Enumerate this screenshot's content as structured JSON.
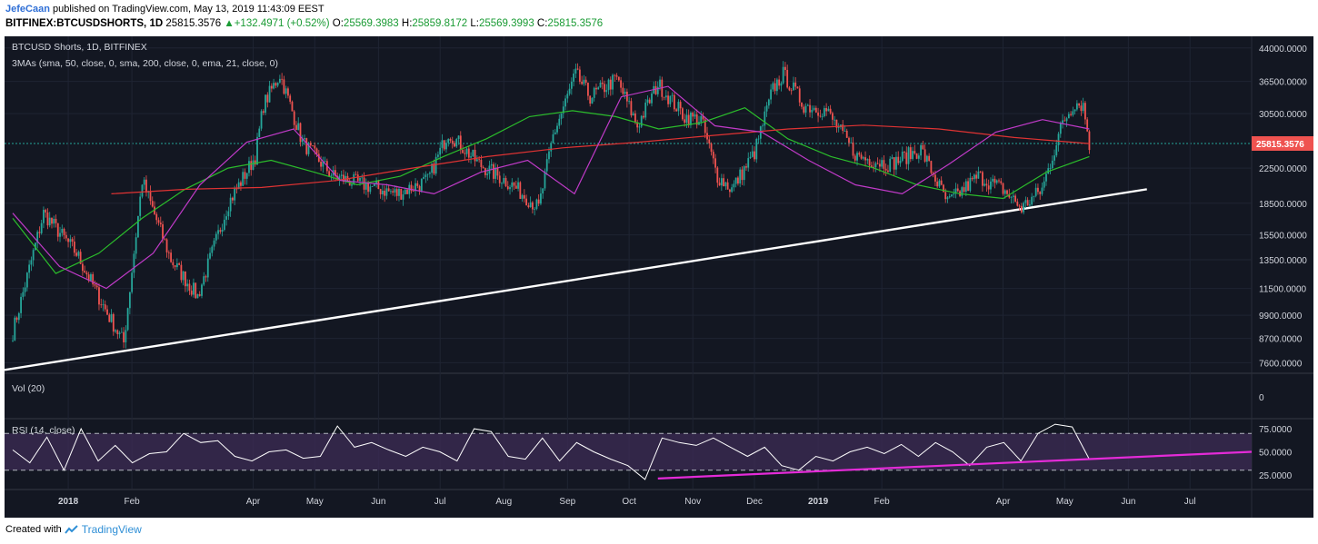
{
  "header": {
    "author": "JefeCaan",
    "published_text": " published on TradingView.com, May 13, 2019 11:43:09 EEST",
    "symbol": "BITFINEX:BTCUSDSHORTS, 1D",
    "last": "25815.3576",
    "change": "+132.4971 (+0.52%)",
    "o_label": "O:",
    "o_value": "25569.3983",
    "h_label": "H:",
    "h_value": "25859.8172",
    "l_label": "L:",
    "l_value": "25569.3993",
    "c_label": "C:",
    "c_value": "25815.3576",
    "up_arrow": "▲"
  },
  "panes": {
    "main_title": "BTCUSD Shorts, 1D, BITFINEX",
    "main_indicator": "3MAs (sma, 50, close, 0, sma, 200, close, 0, ema, 21, close, 0)",
    "vol_title": "Vol (20)",
    "vol_axis_label": "0",
    "rsi_title": "RSI (14, close)"
  },
  "footer": {
    "created_with": "Created with",
    "brand": "TradingView"
  },
  "colors": {
    "background": "#131722",
    "up": "#26a69a",
    "down": "#ef5350",
    "sma50": "#2bbd2b",
    "sma200": "#e03333",
    "ema21": "#c03ac8",
    "trendline": "#ffffff",
    "rsi_line": "#ffffff",
    "rsi_band": "#3b2a52",
    "rsi_trend": "#e42bd8",
    "price_line": "#26a69a"
  },
  "chart_data": {
    "type": "candlestick",
    "title": "BTCUSD Shorts, 1D, BITFINEX",
    "scale": "log",
    "ylim": [
      7200,
      46000
    ],
    "y_ticks": [
      "44000.0000",
      "36500.0000",
      "30500.0000",
      "25815.3576",
      "22500.0000",
      "18500.0000",
      "15500.0000",
      "13500.0000",
      "11500.0000",
      "9900.0000",
      "8700.0000",
      "7600.0000"
    ],
    "last_price": 25815.3576,
    "x_ticks": [
      "2018",
      "Feb",
      "Apr",
      "May",
      "Jun",
      "Jul",
      "Aug",
      "Sep",
      "Oct",
      "Nov",
      "Dec",
      "2019",
      "Feb",
      "Apr",
      "May",
      "Jun",
      "Jul"
    ],
    "x_tick_dates": [
      "2018-01-01",
      "2018-02-01",
      "2018-04-01",
      "2018-05-01",
      "2018-06-01",
      "2018-07-01",
      "2018-08-01",
      "2018-09-01",
      "2018-10-01",
      "2018-11-01",
      "2018-12-01",
      "2019-01-01",
      "2019-02-01",
      "2019-04-01",
      "2019-05-01",
      "2019-06-01",
      "2019-07-01"
    ],
    "series": [
      {
        "name": "BTCUSD Shorts (close)",
        "dates": [
          "2017-12-05",
          "2017-12-20",
          "2018-01-05",
          "2018-01-20",
          "2018-01-28",
          "2018-02-06",
          "2018-02-20",
          "2018-03-05",
          "2018-03-20",
          "2018-04-02",
          "2018-04-06",
          "2018-04-14",
          "2018-04-25",
          "2018-05-10",
          "2018-05-25",
          "2018-06-10",
          "2018-06-25",
          "2018-07-05",
          "2018-07-20",
          "2018-08-05",
          "2018-08-18",
          "2018-08-25",
          "2018-09-05",
          "2018-09-12",
          "2018-09-25",
          "2018-10-05",
          "2018-10-15",
          "2018-10-28",
          "2018-11-05",
          "2018-11-13",
          "2018-11-20",
          "2018-12-01",
          "2018-12-10",
          "2018-12-15",
          "2018-12-25",
          "2019-01-05",
          "2019-01-20",
          "2019-02-05",
          "2019-02-20",
          "2019-03-05",
          "2019-03-20",
          "2019-04-01",
          "2019-04-10",
          "2019-04-20",
          "2019-04-30",
          "2019-05-06",
          "2019-05-10",
          "2019-05-13"
        ],
        "values": [
          9000,
          17500,
          14000,
          10000,
          8500,
          21000,
          13500,
          11000,
          18500,
          24000,
          32000,
          38000,
          26000,
          21500,
          20500,
          19500,
          21000,
          27500,
          23000,
          20500,
          18000,
          27000,
          38000,
          33500,
          37000,
          28500,
          36000,
          30000,
          29500,
          21500,
          20000,
          24500,
          35000,
          38000,
          32000,
          31000,
          24000,
          23000,
          25000,
          18500,
          21500,
          20000,
          18000,
          20000,
          29000,
          32500,
          32000,
          25815
        ]
      },
      {
        "name": "SMA 50",
        "values": [
          17000,
          12500,
          14000,
          17000,
          20000,
          22500,
          23500,
          22000,
          20500,
          21500,
          24000,
          26500,
          30000,
          31000,
          30000,
          28000,
          29000,
          31500,
          26500,
          24000,
          22500,
          20500,
          19500,
          19000,
          22000,
          24000
        ]
      },
      {
        "name": "SMA 200",
        "values": [
          19500,
          20000,
          20200,
          21000,
          22500,
          24000,
          25200,
          26000,
          27000,
          28000,
          28600,
          28000,
          26700,
          25800
        ]
      },
      {
        "name": "EMA 21",
        "values": [
          17500,
          13000,
          11500,
          14000,
          20500,
          26000,
          28000,
          21000,
          20500,
          19500,
          22000,
          23500,
          19500,
          33500,
          35500,
          28500,
          27500,
          23500,
          20500,
          19500,
          23000,
          27500,
          29500,
          28000
        ]
      }
    ],
    "volume": {
      "label": "Vol (20)",
      "axis_ticks": [
        "0"
      ]
    },
    "rsi": {
      "label": "RSI (14, close)",
      "y_ticks": [
        "75.0000",
        "50.0000",
        "25.0000"
      ],
      "upper_band": 70,
      "lower_band": 30,
      "values": [
        52,
        38,
        66,
        30,
        75,
        40,
        57,
        38,
        48,
        50,
        70,
        60,
        62,
        45,
        40,
        50,
        52,
        43,
        45,
        78,
        55,
        60,
        52,
        45,
        55,
        50,
        40,
        75,
        72,
        45,
        42,
        65,
        40,
        60,
        50,
        42,
        35,
        20,
        65,
        60,
        57,
        65,
        55,
        45,
        55,
        35,
        30,
        45,
        40,
        50,
        55,
        48,
        58,
        45,
        60,
        50,
        35,
        55,
        60,
        40,
        70,
        80,
        77,
        42
      ],
      "trendline": {
        "start": [
          "2018-10-15",
          21
        ],
        "end": [
          "2019-07-31",
          50
        ]
      }
    },
    "trendline": {
      "start": [
        "2017-12-01",
        7300
      ],
      "end": [
        "2019-06-10",
        20000
      ]
    }
  }
}
